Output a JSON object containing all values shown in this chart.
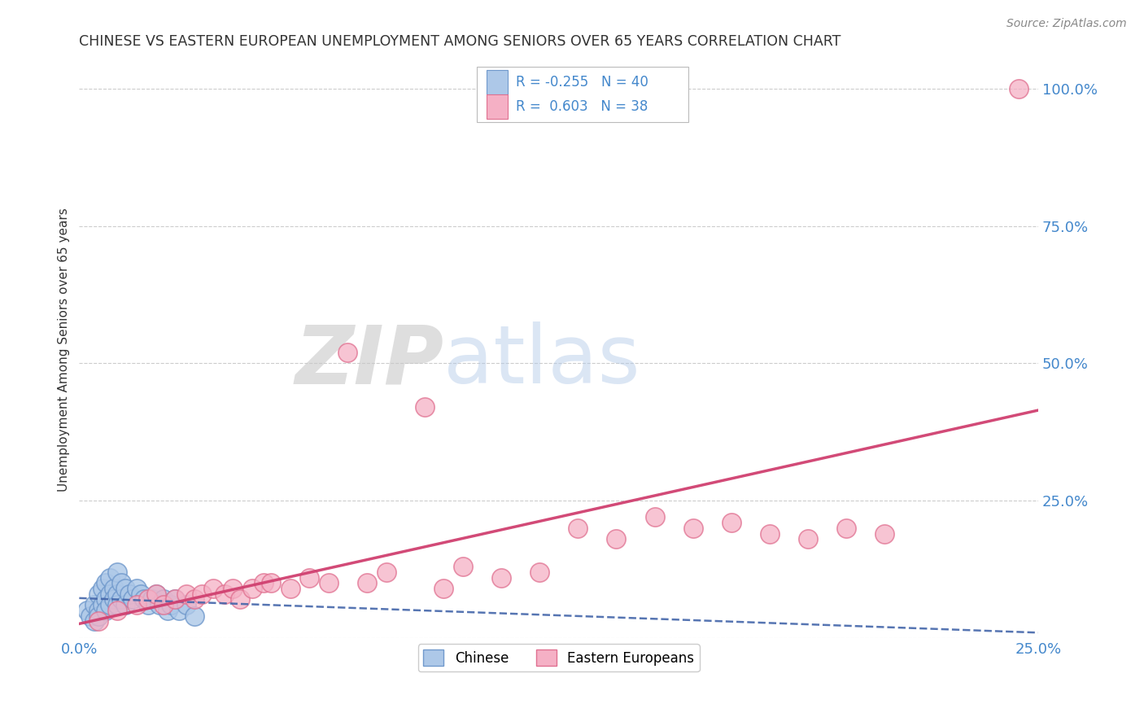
{
  "title": "CHINESE VS EASTERN EUROPEAN UNEMPLOYMENT AMONG SENIORS OVER 65 YEARS CORRELATION CHART",
  "source": "Source: ZipAtlas.com",
  "ylabel": "Unemployment Among Seniors over 65 years",
  "xlim": [
    0.0,
    0.25
  ],
  "ylim": [
    0.0,
    1.05
  ],
  "xtick_positions": [
    0.0,
    0.05,
    0.1,
    0.15,
    0.2,
    0.25
  ],
  "xticklabels": [
    "0.0%",
    "",
    "",
    "",
    "",
    "25.0%"
  ],
  "ytick_positions": [
    0.0,
    0.25,
    0.5,
    0.75,
    1.0
  ],
  "ytick_labels_right": [
    "",
    "25.0%",
    "50.0%",
    "75.0%",
    "100.0%"
  ],
  "chinese_color": "#adc8e8",
  "eastern_color": "#f5b0c5",
  "chinese_edge": "#7099cc",
  "eastern_edge": "#e07090",
  "trendline_chinese_color": "#4466aa",
  "trendline_eastern_color": "#d04070",
  "R_chinese": -0.255,
  "N_chinese": 40,
  "R_eastern": 0.603,
  "N_eastern": 38,
  "chinese_x": [
    0.002,
    0.003,
    0.004,
    0.004,
    0.005,
    0.005,
    0.005,
    0.006,
    0.006,
    0.007,
    0.007,
    0.007,
    0.008,
    0.008,
    0.008,
    0.009,
    0.009,
    0.01,
    0.01,
    0.01,
    0.011,
    0.011,
    0.012,
    0.012,
    0.013,
    0.014,
    0.015,
    0.016,
    0.017,
    0.018,
    0.019,
    0.02,
    0.021,
    0.022,
    0.023,
    0.024,
    0.025,
    0.026,
    0.028,
    0.03
  ],
  "chinese_y": [
    0.05,
    0.04,
    0.06,
    0.03,
    0.08,
    0.05,
    0.04,
    0.09,
    0.06,
    0.1,
    0.07,
    0.05,
    0.11,
    0.08,
    0.06,
    0.09,
    0.07,
    0.12,
    0.08,
    0.06,
    0.1,
    0.07,
    0.09,
    0.06,
    0.08,
    0.07,
    0.09,
    0.08,
    0.07,
    0.06,
    0.07,
    0.08,
    0.06,
    0.07,
    0.05,
    0.06,
    0.07,
    0.05,
    0.06,
    0.04
  ],
  "eastern_x": [
    0.005,
    0.01,
    0.015,
    0.018,
    0.02,
    0.022,
    0.025,
    0.028,
    0.03,
    0.032,
    0.035,
    0.038,
    0.04,
    0.042,
    0.045,
    0.048,
    0.05,
    0.055,
    0.06,
    0.065,
    0.07,
    0.075,
    0.08,
    0.09,
    0.095,
    0.1,
    0.11,
    0.12,
    0.13,
    0.14,
    0.15,
    0.16,
    0.17,
    0.18,
    0.19,
    0.2,
    0.21,
    0.245
  ],
  "eastern_y": [
    0.03,
    0.05,
    0.06,
    0.07,
    0.08,
    0.06,
    0.07,
    0.08,
    0.07,
    0.08,
    0.09,
    0.08,
    0.09,
    0.07,
    0.09,
    0.1,
    0.1,
    0.09,
    0.11,
    0.1,
    0.52,
    0.1,
    0.12,
    0.42,
    0.09,
    0.13,
    0.11,
    0.12,
    0.2,
    0.18,
    0.22,
    0.2,
    0.21,
    0.19,
    0.18,
    0.2,
    0.19,
    1.0
  ],
  "watermark_ZIP": "ZIP",
  "watermark_atlas": "atlas",
  "legend_chinese_label": "Chinese",
  "legend_eastern_label": "Eastern Europeans",
  "background_color": "#ffffff",
  "grid_color": "#cccccc",
  "title_color": "#333333",
  "axis_label_color": "#333333",
  "right_ytick_color": "#4488cc",
  "bottom_xtick_color": "#4488cc",
  "source_color": "#888888"
}
